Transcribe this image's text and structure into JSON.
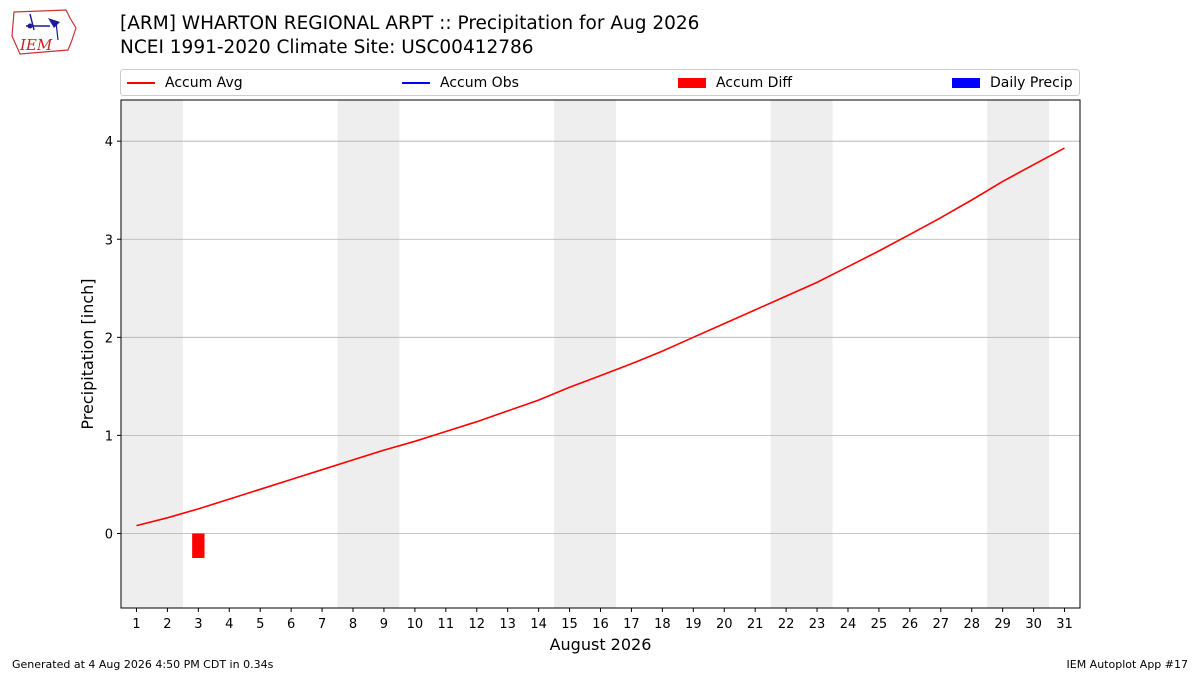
{
  "header": {
    "title_line1": "[ARM] WHARTON REGIONAL ARPT :: Precipitation for Aug 2026",
    "title_line2": "NCEI 1991-2020 Climate Site: USC00412786",
    "logo_text": "IEM"
  },
  "legend": [
    {
      "label": "Accum Avg",
      "kind": "line",
      "color": "#ff0000"
    },
    {
      "label": "Accum Obs",
      "kind": "line",
      "color": "#0000ff"
    },
    {
      "label": "Accum Diff",
      "kind": "box",
      "color": "#ff0000"
    },
    {
      "label": "Daily Precip",
      "kind": "box",
      "color": "#0000ff"
    }
  ],
  "chart_data": {
    "type": "line",
    "xlabel": "August 2026",
    "ylabel": "Precipitation [inch]",
    "x": [
      1,
      2,
      3,
      4,
      5,
      6,
      7,
      8,
      9,
      10,
      11,
      12,
      13,
      14,
      15,
      16,
      17,
      18,
      19,
      20,
      21,
      22,
      23,
      24,
      25,
      26,
      27,
      28,
      29,
      30,
      31
    ],
    "xlim": [
      0.5,
      31.5
    ],
    "ylim": [
      -0.76,
      4.42
    ],
    "yticks": [
      0,
      1,
      2,
      3,
      4
    ],
    "grid": "horizontal",
    "weekend_shading": [
      [
        1,
        2
      ],
      [
        8,
        9
      ],
      [
        15,
        16
      ],
      [
        22,
        23
      ],
      [
        29,
        30
      ]
    ],
    "series": [
      {
        "name": "Accum Avg",
        "color": "#ff0000",
        "values": [
          0.08,
          0.16,
          0.25,
          0.35,
          0.45,
          0.55,
          0.65,
          0.75,
          0.85,
          0.94,
          1.04,
          1.14,
          1.25,
          1.36,
          1.49,
          1.61,
          1.73,
          1.86,
          2.0,
          2.14,
          2.28,
          2.42,
          2.56,
          2.72,
          2.88,
          3.05,
          3.22,
          3.4,
          3.59,
          3.76,
          3.93
        ]
      }
    ],
    "bars": [
      {
        "name": "Accum Diff",
        "color": "#ff0000",
        "x": 3,
        "value": -0.25
      }
    ]
  },
  "footer": {
    "left": "Generated at 4 Aug 2026 4:50 PM CDT in 0.34s",
    "right": "IEM Autoplot App #17"
  }
}
